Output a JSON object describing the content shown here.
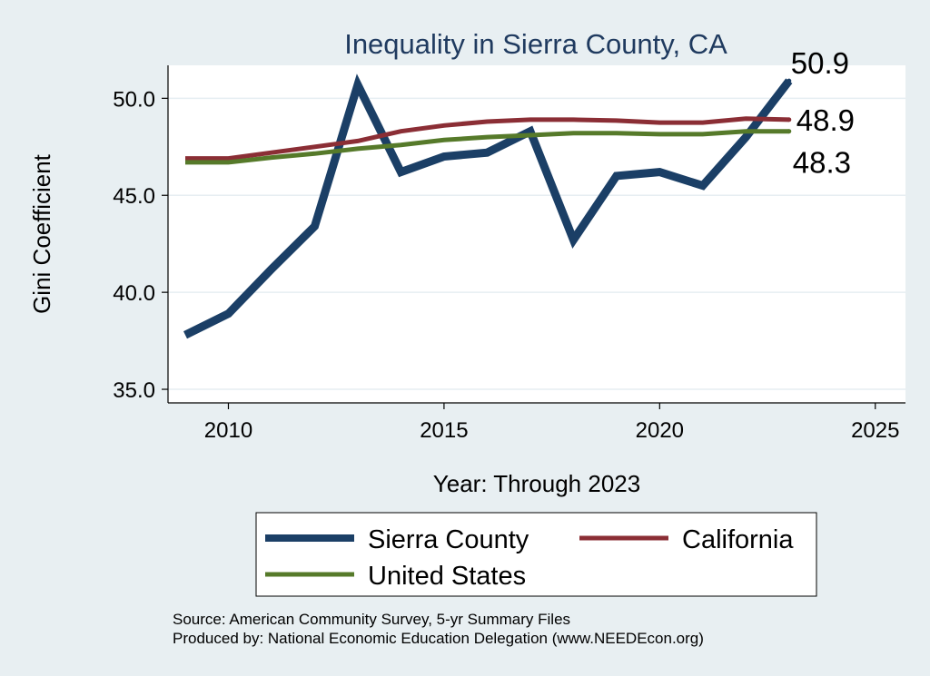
{
  "chart_data": {
    "type": "line",
    "title": "Inequality in Sierra County, CA",
    "xlabel": "Year: Through 2023",
    "ylabel": "Gini Coefficient",
    "xlim": [
      2008.6,
      2025.7
    ],
    "ylim": [
      34.3,
      51.7
    ],
    "xticks": [
      2010,
      2015,
      2020,
      2025
    ],
    "yticks": [
      35.0,
      40.0,
      45.0,
      50.0
    ],
    "ytick_labels": [
      "35.0",
      "40.0",
      "45.0",
      "50.0"
    ],
    "grid": true,
    "x": [
      2009,
      2010,
      2011,
      2012,
      2013,
      2014,
      2015,
      2016,
      2017,
      2018,
      2019,
      2020,
      2021,
      2022,
      2023
    ],
    "series": [
      {
        "name": "Sierra County",
        "color": "#1b3f66",
        "values": [
          37.8,
          38.9,
          41.2,
          43.4,
          50.7,
          46.2,
          47.0,
          47.2,
          48.3,
          42.7,
          46.0,
          46.2,
          45.5,
          48.0,
          50.9
        ],
        "end_label": "50.9"
      },
      {
        "name": "California",
        "color": "#8b2e35",
        "values": [
          46.9,
          46.9,
          47.2,
          47.5,
          47.8,
          48.3,
          48.6,
          48.8,
          48.9,
          48.9,
          48.85,
          48.75,
          48.75,
          48.95,
          48.9
        ],
        "end_label": "48.9"
      },
      {
        "name": "United States",
        "color": "#567a2a",
        "values": [
          46.7,
          46.7,
          46.95,
          47.15,
          47.4,
          47.6,
          47.85,
          48.0,
          48.1,
          48.2,
          48.2,
          48.15,
          48.15,
          48.3,
          48.3
        ],
        "end_label": "48.3"
      }
    ]
  },
  "legend": {
    "items": [
      "Sierra County",
      "California",
      "United States"
    ]
  },
  "footer": {
    "source": "Source: American Community Survey, 5-yr Summary Files",
    "produced": "Produced by: National Economic Education Delegation (www.NEEDEcon.org)"
  }
}
